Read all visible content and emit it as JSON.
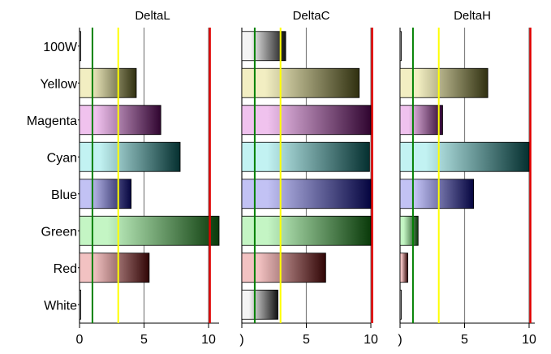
{
  "chart_data": {
    "type": "bar",
    "orientation": "horizontal",
    "categories": [
      "100W",
      "Yellow",
      "Magenta",
      "Cyan",
      "Blue",
      "Green",
      "Red",
      "White"
    ],
    "colors": {
      "100W": {
        "light": "#f4f4f4",
        "dark": "#111111"
      },
      "Yellow": {
        "light": "#f2eec2",
        "dark": "#303010"
      },
      "Magenta": {
        "light": "#f0c2ee",
        "dark": "#300530"
      },
      "Cyan": {
        "light": "#c2f2f2",
        "dark": "#053030"
      },
      "Blue": {
        "light": "#c2c2f4",
        "dark": "#050540"
      },
      "Green": {
        "light": "#c4f5c4",
        "dark": "#0a3a0a"
      },
      "Red": {
        "light": "#f2c2c2",
        "dark": "#300505"
      },
      "White": {
        "light": "#f4f4f4",
        "dark": "#111111"
      }
    },
    "xlim": [
      0,
      11
    ],
    "xticks": [
      0,
      5,
      10
    ],
    "grid": "vertical",
    "reference_lines": [
      {
        "value": 1,
        "color": "#008000"
      },
      {
        "value": 3,
        "color": "#ffff00"
      },
      {
        "value": 10.1,
        "color": "#e00000"
      }
    ],
    "panels": [
      {
        "title": "DeltaL",
        "tick_labels": [
          "0",
          "5",
          "10"
        ],
        "values": [
          0.05,
          4.4,
          6.3,
          7.8,
          4.0,
          11.0,
          5.4,
          0.05
        ]
      },
      {
        "title": "DeltaC",
        "tick_labels": ")",
        "tick_labels_list": [
          ")",
          "5",
          "10"
        ],
        "values": [
          3.4,
          9.1,
          11.0,
          9.9,
          11.0,
          11.0,
          6.5,
          2.8
        ]
      },
      {
        "title": "DeltaH",
        "tick_labels_list": [
          ")",
          "5",
          "10"
        ],
        "values": [
          0.05,
          6.8,
          3.3,
          10.0,
          5.7,
          1.4,
          0.6,
          0.05
        ]
      }
    ]
  }
}
